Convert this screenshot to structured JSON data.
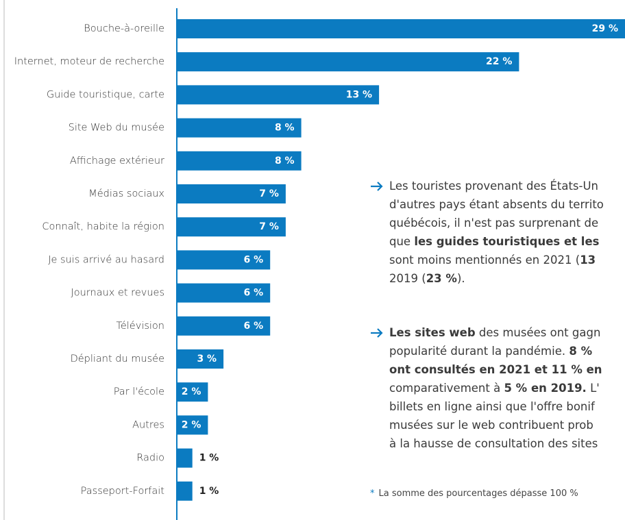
{
  "chart_data": {
    "type": "bar",
    "orientation": "horizontal",
    "color": "#0b7bc1",
    "categories": [
      "Bouche-à-oreille",
      "Internet, moteur de recherche",
      "Guide touristique, carte",
      "Site Web du musée",
      "Affichage extérieur",
      "Médias sociaux",
      "Connaît, habite la région",
      "Je suis arrivé au hasard",
      "Journaux et revues",
      "Télévision",
      "Dépliant du musée",
      "Par l'école",
      "Autres",
      "Radio",
      "Passeport-Forfait"
    ],
    "values": [
      29,
      22,
      13,
      8,
      8,
      7,
      7,
      6,
      6,
      6,
      3,
      2,
      2,
      1,
      1
    ],
    "value_labels": [
      "29 %",
      "22 %",
      "13 %",
      "8 %",
      "8 %",
      "7 %",
      "7 %",
      "6 %",
      "6 %",
      "6 %",
      "3 %",
      "2 %",
      "2 %",
      "1 %",
      "1 %"
    ]
  },
  "notes": [
    [
      [
        {
          "text": "Les touristes provenant des États-Un"
        }
      ],
      [
        {
          "text": "d'autres pays étant absents du territo"
        }
      ],
      [
        {
          "text": "québécois, il n'est pas surprenant de"
        }
      ],
      [
        {
          "text": "que "
        },
        {
          "text": "les guides touristiques et les",
          "bold": true
        }
      ],
      [
        {
          "text": "sont moins mentionnés en 2021 ("
        },
        {
          "text": "13",
          "bold": true
        }
      ],
      [
        {
          "text": "2019 ("
        },
        {
          "text": "23 %",
          "bold": true
        },
        {
          "text": ")."
        }
      ]
    ],
    [
      [
        {
          "text": "Les sites web",
          "bold": true
        },
        {
          "text": " des musées ont gagn"
        }
      ],
      [
        {
          "text": "popularité durant la pandémie. "
        },
        {
          "text": "8 %",
          "bold": true
        }
      ],
      [
        {
          "text": "ont consultés en 2021 et 11 % en",
          "bold": true
        }
      ],
      [
        {
          "text": "comparativement à "
        },
        {
          "text": "5 % en 2019.",
          "bold": true
        },
        {
          "text": " L'"
        }
      ],
      [
        {
          "text": "billets en ligne ainsi que l'offre bonif"
        }
      ],
      [
        {
          "text": "musées sur le web contribuent prob"
        }
      ],
      [
        {
          "text": "à la hausse de consultation des sites"
        }
      ]
    ]
  ],
  "footnote": {
    "marker": "*",
    "text": "La somme des pourcentages dépasse 100 %"
  }
}
